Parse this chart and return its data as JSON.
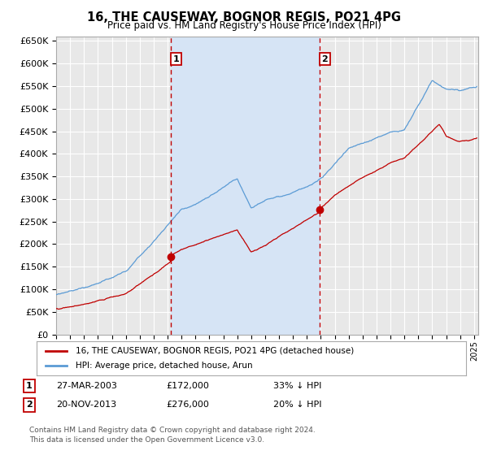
{
  "title": "16, THE CAUSEWAY, BOGNOR REGIS, PO21 4PG",
  "subtitle": "Price paid vs. HM Land Registry's House Price Index (HPI)",
  "ylim": [
    0,
    660000
  ],
  "yticks": [
    0,
    50000,
    100000,
    150000,
    200000,
    250000,
    300000,
    350000,
    400000,
    450000,
    500000,
    550000,
    600000,
    650000
  ],
  "xlim_start": 1995.0,
  "xlim_end": 2025.3,
  "plot_bg_color": "#e8e8e8",
  "shade_color": "#d6e4f5",
  "grid_color": "#ffffff",
  "hpi_color": "#5b9bd5",
  "price_color": "#c00000",
  "sale1_x": 2003.23,
  "sale1_y": 172000,
  "sale1_label": "1",
  "sale1_date": "27-MAR-2003",
  "sale1_price": "£172,000",
  "sale1_pct": "33% ↓ HPI",
  "sale2_x": 2013.9,
  "sale2_y": 276000,
  "sale2_label": "2",
  "sale2_date": "20-NOV-2013",
  "sale2_price": "£276,000",
  "sale2_pct": "20% ↓ HPI",
  "legend_label1": "16, THE CAUSEWAY, BOGNOR REGIS, PO21 4PG (detached house)",
  "legend_label2": "HPI: Average price, detached house, Arun",
  "footer1": "Contains HM Land Registry data © Crown copyright and database right 2024.",
  "footer2": "This data is licensed under the Open Government Licence v3.0."
}
